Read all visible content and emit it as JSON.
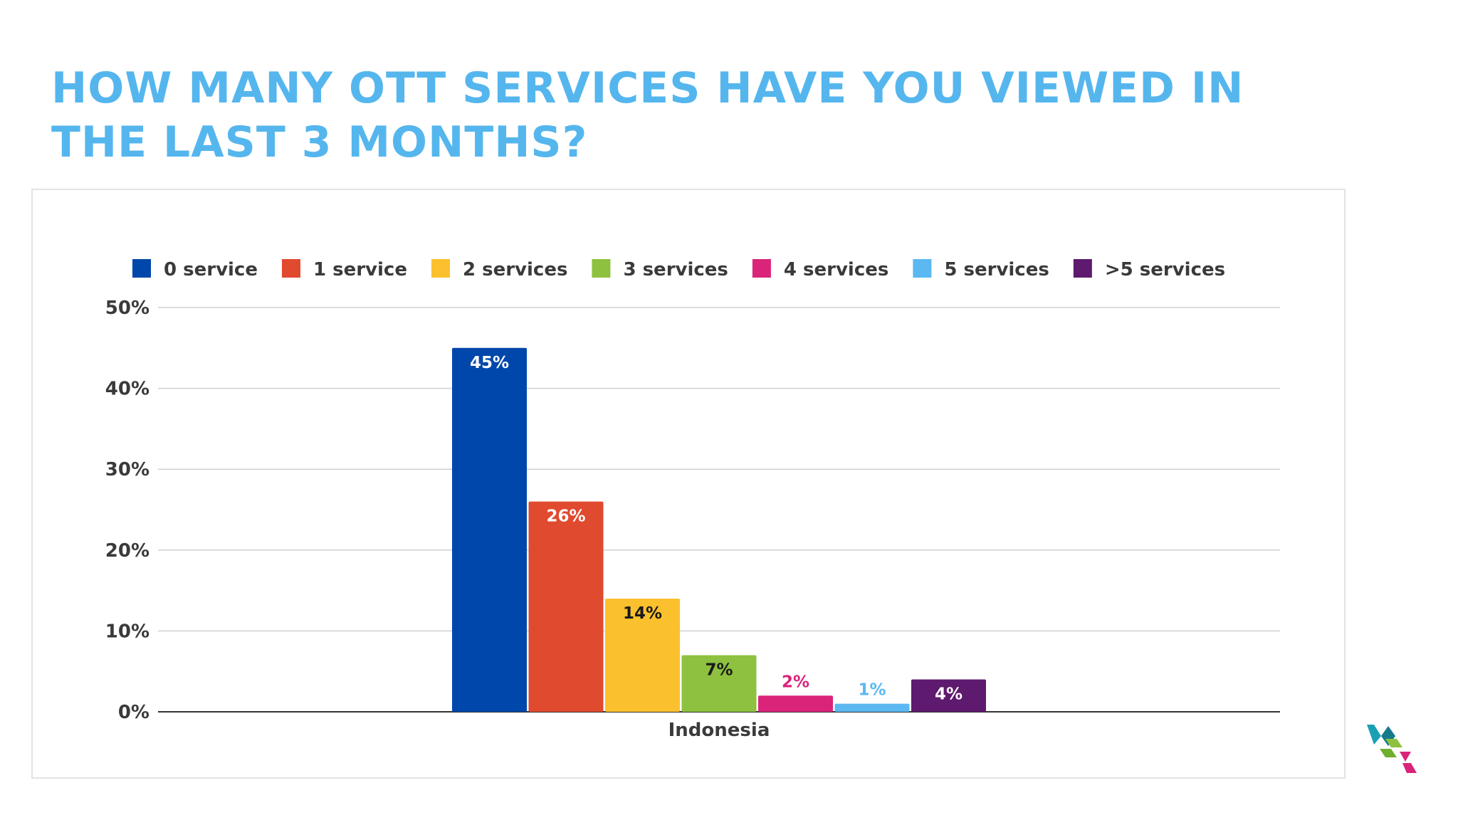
{
  "page": {
    "title": "HOW MANY OTT SERVICES HAVE YOU VIEWED IN\nTHE LAST 3 MONTHS?"
  },
  "chart_data": {
    "type": "bar",
    "categories": [
      "Indonesia"
    ],
    "series": [
      {
        "name": "0 service",
        "values": [
          45
        ],
        "label": "45%",
        "color": "#0047ab",
        "label_inside": true,
        "label_color": "#ffffff"
      },
      {
        "name": "1 service",
        "values": [
          26
        ],
        "label": "26%",
        "color": "#e04a2f",
        "label_inside": true,
        "label_color": "#ffffff"
      },
      {
        "name": "2 services",
        "values": [
          14
        ],
        "label": "14%",
        "color": "#fbc02d",
        "label_inside": true,
        "label_color": "#1a1a1a"
      },
      {
        "name": "3 services",
        "values": [
          7
        ],
        "label": "7%",
        "color": "#8dc13f",
        "label_inside": true,
        "label_color": "#1a1a1a"
      },
      {
        "name": "4 services",
        "values": [
          2
        ],
        "label": "2%",
        "color": "#d9247a",
        "label_inside": false,
        "label_color": "#d9247a"
      },
      {
        "name": "5 services",
        "values": [
          1
        ],
        "label": "1%",
        "color": "#5bb8f0",
        "label_inside": false,
        "label_color": "#5bb8f0"
      },
      {
        "name": ">5 services",
        "values": [
          4
        ],
        "label": "4%",
        "color": "#5e1a6e",
        "label_inside": true,
        "label_color": "#ffffff"
      }
    ],
    "ylim": [
      0,
      50
    ],
    "yticks": [
      0,
      10,
      20,
      30,
      40,
      50
    ],
    "ytick_labels": [
      "0%",
      "10%",
      "20%",
      "30%",
      "40%",
      "50%"
    ],
    "grid": true,
    "legend_position": "top",
    "xlabel": "",
    "ylabel": ""
  }
}
